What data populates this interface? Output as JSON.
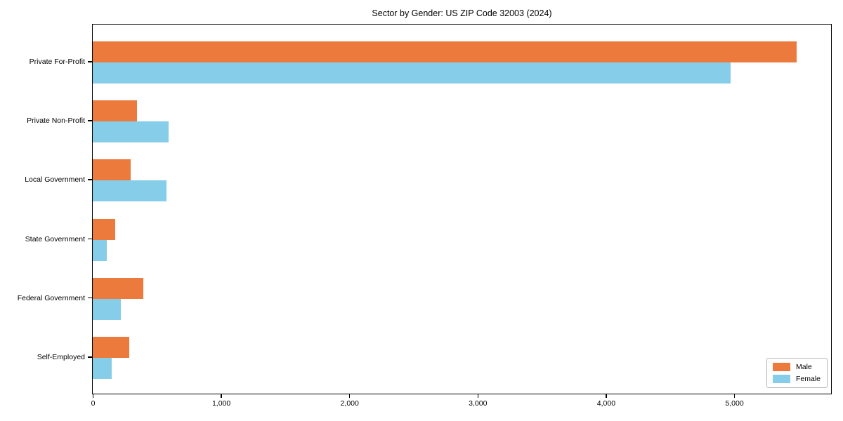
{
  "title": "Sector by Gender: US ZIP Code 32003 (2024)",
  "colors": {
    "male_bar": "#ec7a3d",
    "female_bar": "#86cde9",
    "axis": "#000000",
    "legend_border": "#b7b7b7",
    "background": "#ffffff"
  },
  "chart_data": {
    "type": "bar",
    "orientation": "horizontal",
    "title": "Sector by Gender: US ZIP Code 32003 (2024)",
    "categories": [
      "Private For-Profit",
      "Private Non-Profit",
      "Local Government",
      "State Government",
      "Federal Government",
      "Self-Employed"
    ],
    "series": [
      {
        "name": "Male",
        "color": "#ec7a3d",
        "values": [
          5487,
          344,
          295,
          175,
          393,
          284
        ]
      },
      {
        "name": "Female",
        "color": "#86cde9",
        "values": [
          4973,
          590,
          574,
          109,
          219,
          148
        ]
      }
    ],
    "xlabel": "",
    "ylabel": "",
    "xlim": [
      0,
      5750
    ],
    "xticks": [
      0,
      1000,
      2000,
      3000,
      4000,
      5000
    ],
    "xtick_labels": [
      "0",
      "1,000",
      "2,000",
      "3,000",
      "4,000",
      "5,000"
    ],
    "legend_position": "lower right",
    "legend_entries": [
      "Male",
      "Female"
    ],
    "grid": false
  }
}
